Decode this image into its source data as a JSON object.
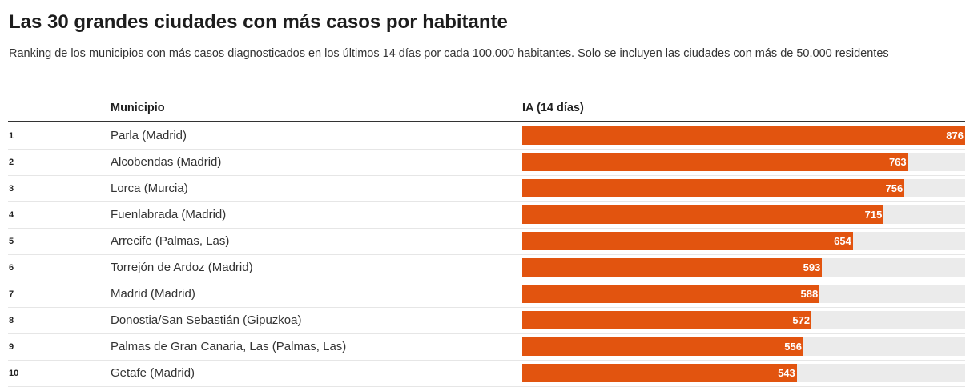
{
  "title": "Las 30 grandes ciudades con más casos por habitante",
  "subtitle": "Ranking de los municipios con más casos diagnosticados en los últimos 14 días por cada 100.000 habitantes. Solo se incluyen las ciudades con más de 50.000 residentes",
  "chart_data": {
    "type": "table",
    "columns": [
      "",
      "Municipio",
      "IA (14 días)"
    ],
    "bar_color": "#e2540f",
    "track_color": "#ebebeb",
    "max": 876,
    "rows": [
      {
        "rank": "1",
        "municipio": "Parla (Madrid)",
        "value": 876
      },
      {
        "rank": "2",
        "municipio": "Alcobendas (Madrid)",
        "value": 763
      },
      {
        "rank": "3",
        "municipio": "Lorca (Murcia)",
        "value": 756
      },
      {
        "rank": "4",
        "municipio": "Fuenlabrada (Madrid)",
        "value": 715
      },
      {
        "rank": "5",
        "municipio": "Arrecife (Palmas, Las)",
        "value": 654
      },
      {
        "rank": "6",
        "municipio": "Torrejón de Ardoz (Madrid)",
        "value": 593
      },
      {
        "rank": "7",
        "municipio": "Madrid (Madrid)",
        "value": 588
      },
      {
        "rank": "8",
        "municipio": "Donostia/San Sebastián (Gipuzkoa)",
        "value": 572
      },
      {
        "rank": "9",
        "municipio": "Palmas de Gran Canaria, Las (Palmas, Las)",
        "value": 556
      },
      {
        "rank": "10",
        "municipio": "Getafe (Madrid)",
        "value": 543
      }
    ]
  }
}
